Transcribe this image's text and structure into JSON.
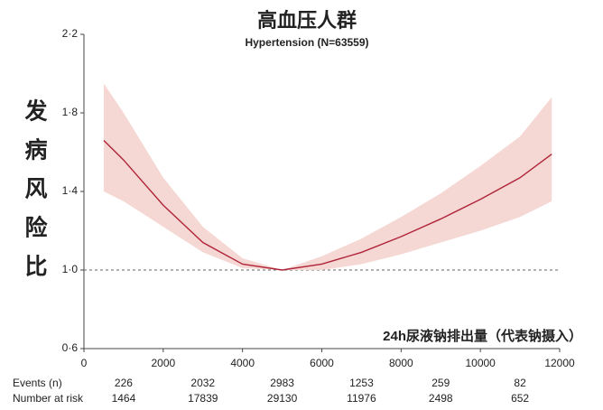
{
  "chart_data": {
    "type": "line",
    "title": "高血压人群",
    "subtitle": "Hypertension (N=63559)",
    "y_label": "发病风险比",
    "x_label": "24h尿液钠排出量（代表钠摄入）",
    "x": [
      500,
      1000,
      2000,
      3000,
      4000,
      5000,
      6000,
      7000,
      8000,
      9000,
      10000,
      11000,
      11800
    ],
    "series": [
      {
        "color": "#b0243a",
        "values": [
          1.66,
          1.56,
          1.33,
          1.14,
          1.03,
          1.0,
          1.03,
          1.09,
          1.17,
          1.26,
          1.36,
          1.47,
          1.59
        ],
        "lower": [
          1.4,
          1.35,
          1.22,
          1.09,
          1.01,
          1.0,
          1.0,
          1.03,
          1.08,
          1.14,
          1.2,
          1.27,
          1.35
        ],
        "upper": [
          1.95,
          1.8,
          1.47,
          1.22,
          1.06,
          1.0,
          1.07,
          1.16,
          1.27,
          1.39,
          1.53,
          1.68,
          1.88
        ],
        "band_color": "#f5d8d3"
      }
    ],
    "xlim": [
      0,
      12000
    ],
    "xticks": [
      0,
      2000,
      4000,
      6000,
      8000,
      10000,
      12000
    ],
    "ylim": [
      0.6,
      2.2
    ],
    "yticks": [
      {
        "value": 0.6,
        "label": "0·6"
      },
      {
        "value": 1.0,
        "label": "1·0"
      },
      {
        "value": 1.4,
        "label": "1·4"
      },
      {
        "value": 1.8,
        "label": "1·8"
      },
      {
        "value": 2.2,
        "label": "2·2"
      }
    ],
    "reference_line": 1.0
  },
  "risk_table": {
    "rows": [
      {
        "label": "Events (n)",
        "values": [
          226,
          2032,
          2983,
          1253,
          259,
          82
        ]
      },
      {
        "label": "Number at risk",
        "values": [
          1464,
          17839,
          29130,
          11976,
          2498,
          652
        ]
      }
    ]
  }
}
